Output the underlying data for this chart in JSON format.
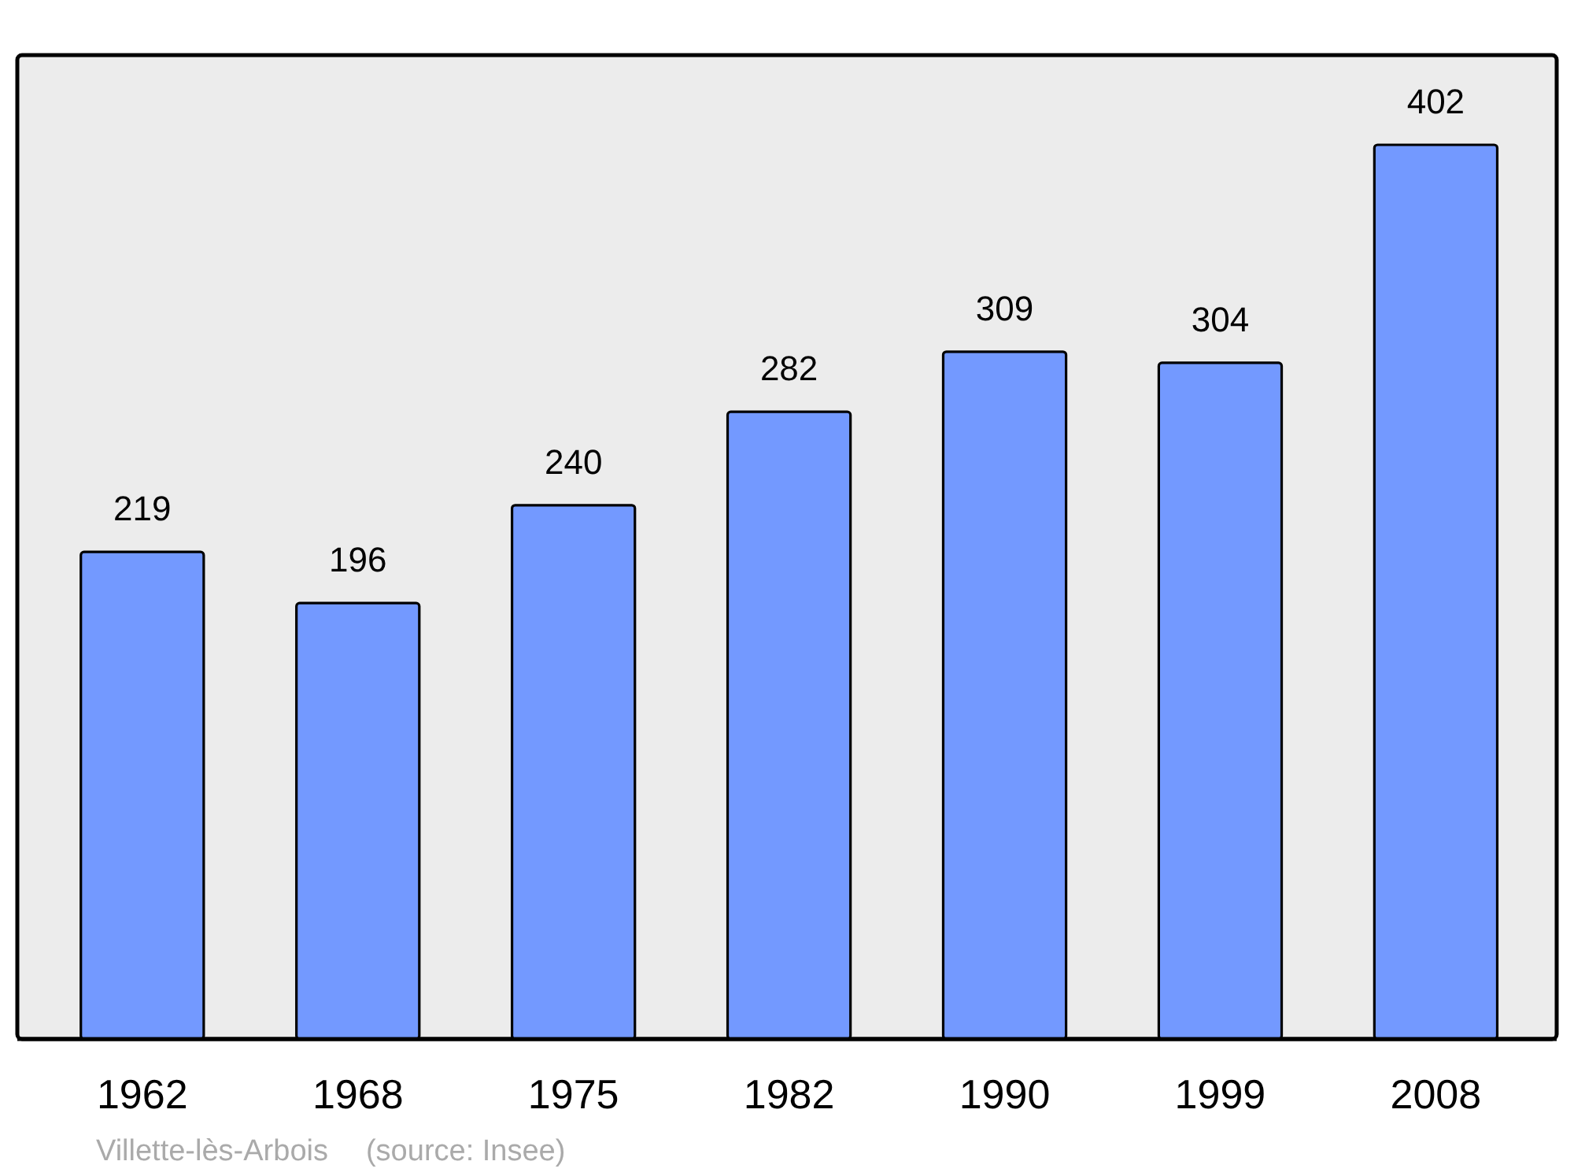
{
  "chart_data": {
    "type": "bar",
    "categories": [
      "1962",
      "1968",
      "1975",
      "1982",
      "1990",
      "1999",
      "2008"
    ],
    "values": [
      219,
      196,
      240,
      282,
      309,
      304,
      402
    ],
    "color": "#7399ff",
    "data_labels": true,
    "annotations": [
      "Villette-lès-Arbois",
      "(source: Insee)"
    ]
  }
}
